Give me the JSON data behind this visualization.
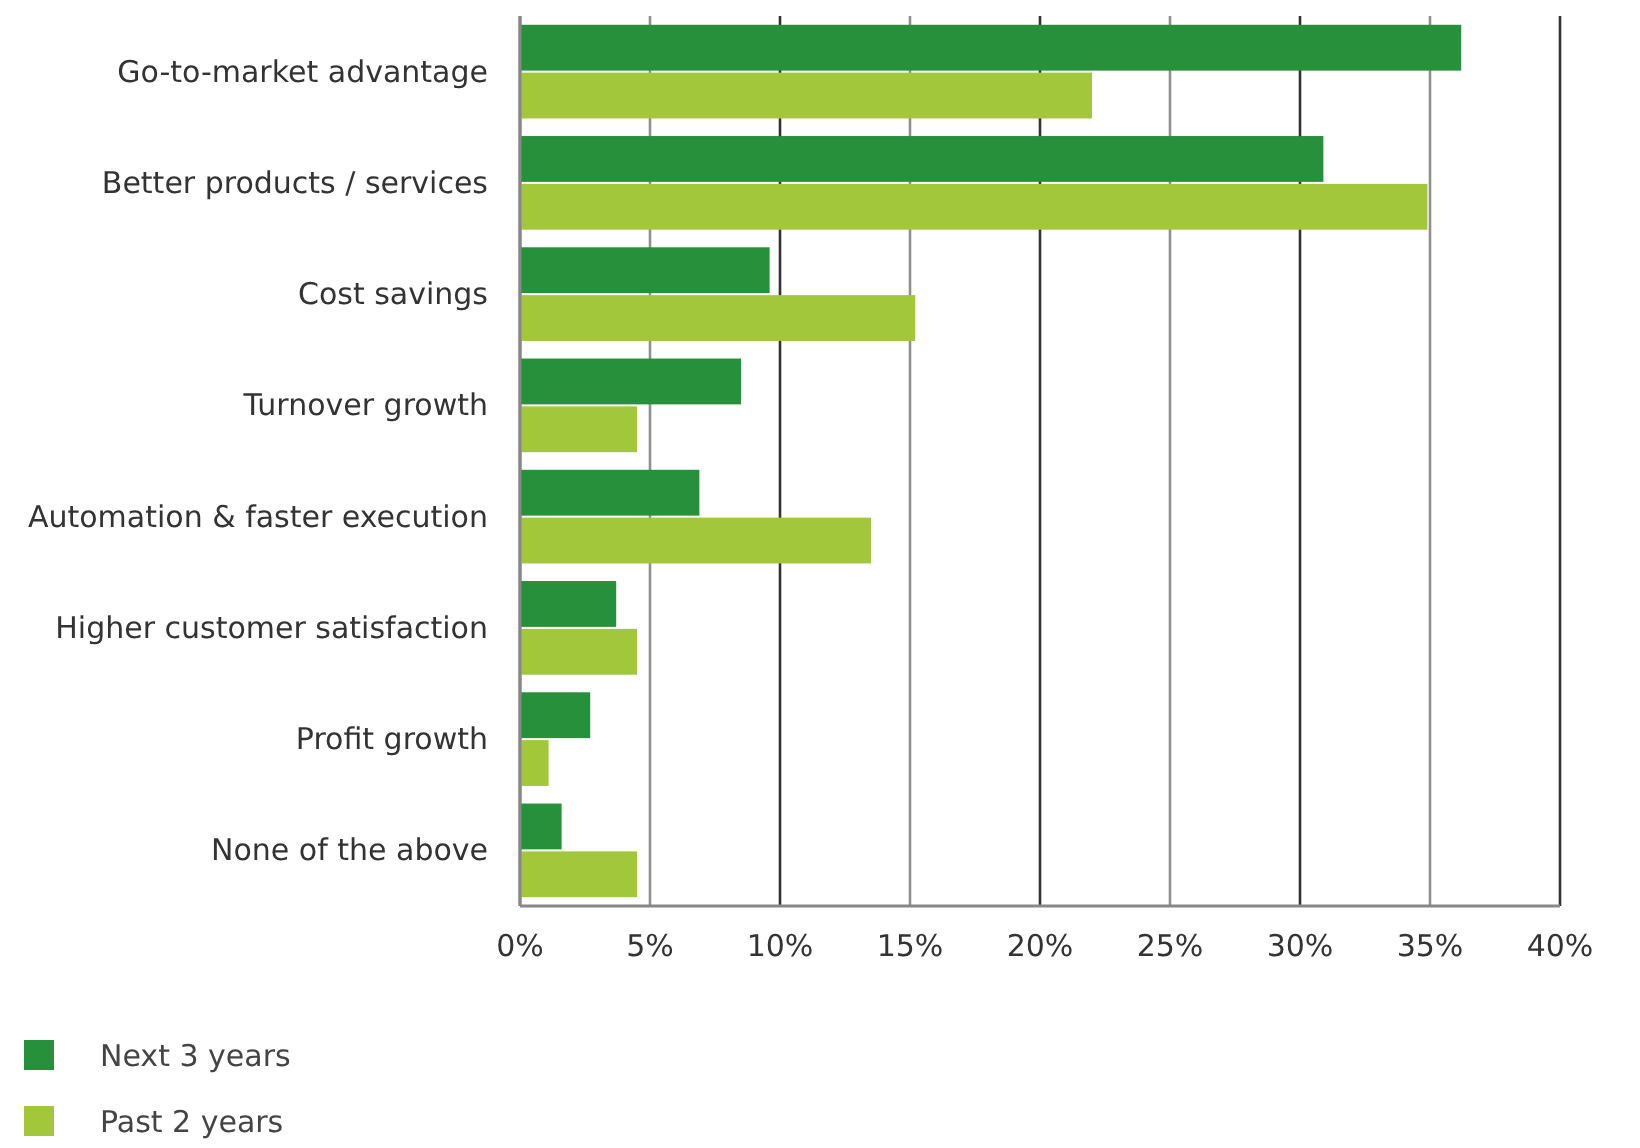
{
  "chart_data": {
    "type": "bar",
    "orientation": "horizontal",
    "categories": [
      "Go-to-market advantage",
      "Better products / services",
      "Cost savings",
      "Turnover growth",
      "Automation & faster execution",
      "Higher customer satisfaction",
      "Profit growth",
      "None of the above"
    ],
    "series": [
      {
        "name": "Next 3 years",
        "color": "#26903a",
        "values": [
          36.2,
          30.9,
          9.6,
          8.5,
          6.9,
          3.7,
          2.7,
          1.6
        ]
      },
      {
        "name": "Past 2 years",
        "color": "#a3c73b",
        "values": [
          22.0,
          34.9,
          15.2,
          4.5,
          13.5,
          4.5,
          1.1,
          4.5
        ]
      }
    ],
    "xlim": [
      0,
      40
    ],
    "xticks": [
      {
        "value": 0,
        "label": "0%"
      },
      {
        "value": 5,
        "label": "5%"
      },
      {
        "value": 10,
        "label": "10%"
      },
      {
        "value": 15,
        "label": "15%"
      },
      {
        "value": 20,
        "label": "20%"
      },
      {
        "value": 25,
        "label": "25%"
      },
      {
        "value": 30,
        "label": "30%"
      },
      {
        "value": 35,
        "label": "35%"
      },
      {
        "value": 40,
        "label": "40%"
      }
    ],
    "grid": "x",
    "legend": "bottom left"
  }
}
